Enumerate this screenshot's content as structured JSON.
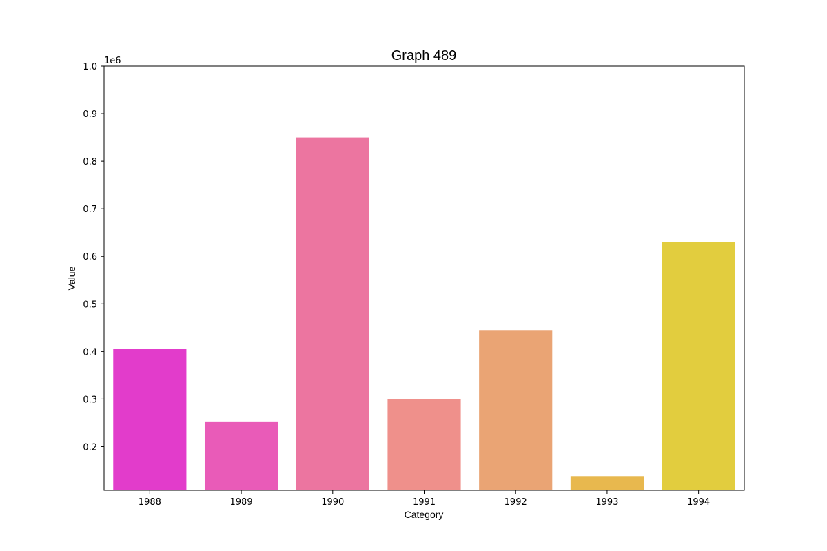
{
  "chart_data": {
    "type": "bar",
    "title": "Graph 489",
    "xlabel": "Category",
    "ylabel": "Value",
    "y_offset_label": "1e6",
    "categories": [
      "1988",
      "1989",
      "1990",
      "1991",
      "1992",
      "1993",
      "1994"
    ],
    "values": [
      405000,
      253000,
      850000,
      300000,
      445000,
      138000,
      630000
    ],
    "colors": [
      "#e23ccb",
      "#e95bb8",
      "#ec75a0",
      "#ef908b",
      "#eaa474",
      "#e8b84e",
      "#e2cd3e"
    ],
    "ylim": [
      108000,
      1000000
    ],
    "yticks": [
      200000,
      300000,
      400000,
      500000,
      600000,
      700000,
      800000,
      900000,
      1000000
    ],
    "ytick_labels": [
      "0.2",
      "0.3",
      "0.4",
      "0.5",
      "0.6",
      "0.7",
      "0.8",
      "0.9",
      "1.0"
    ],
    "grid": false,
    "legend": "none"
  }
}
